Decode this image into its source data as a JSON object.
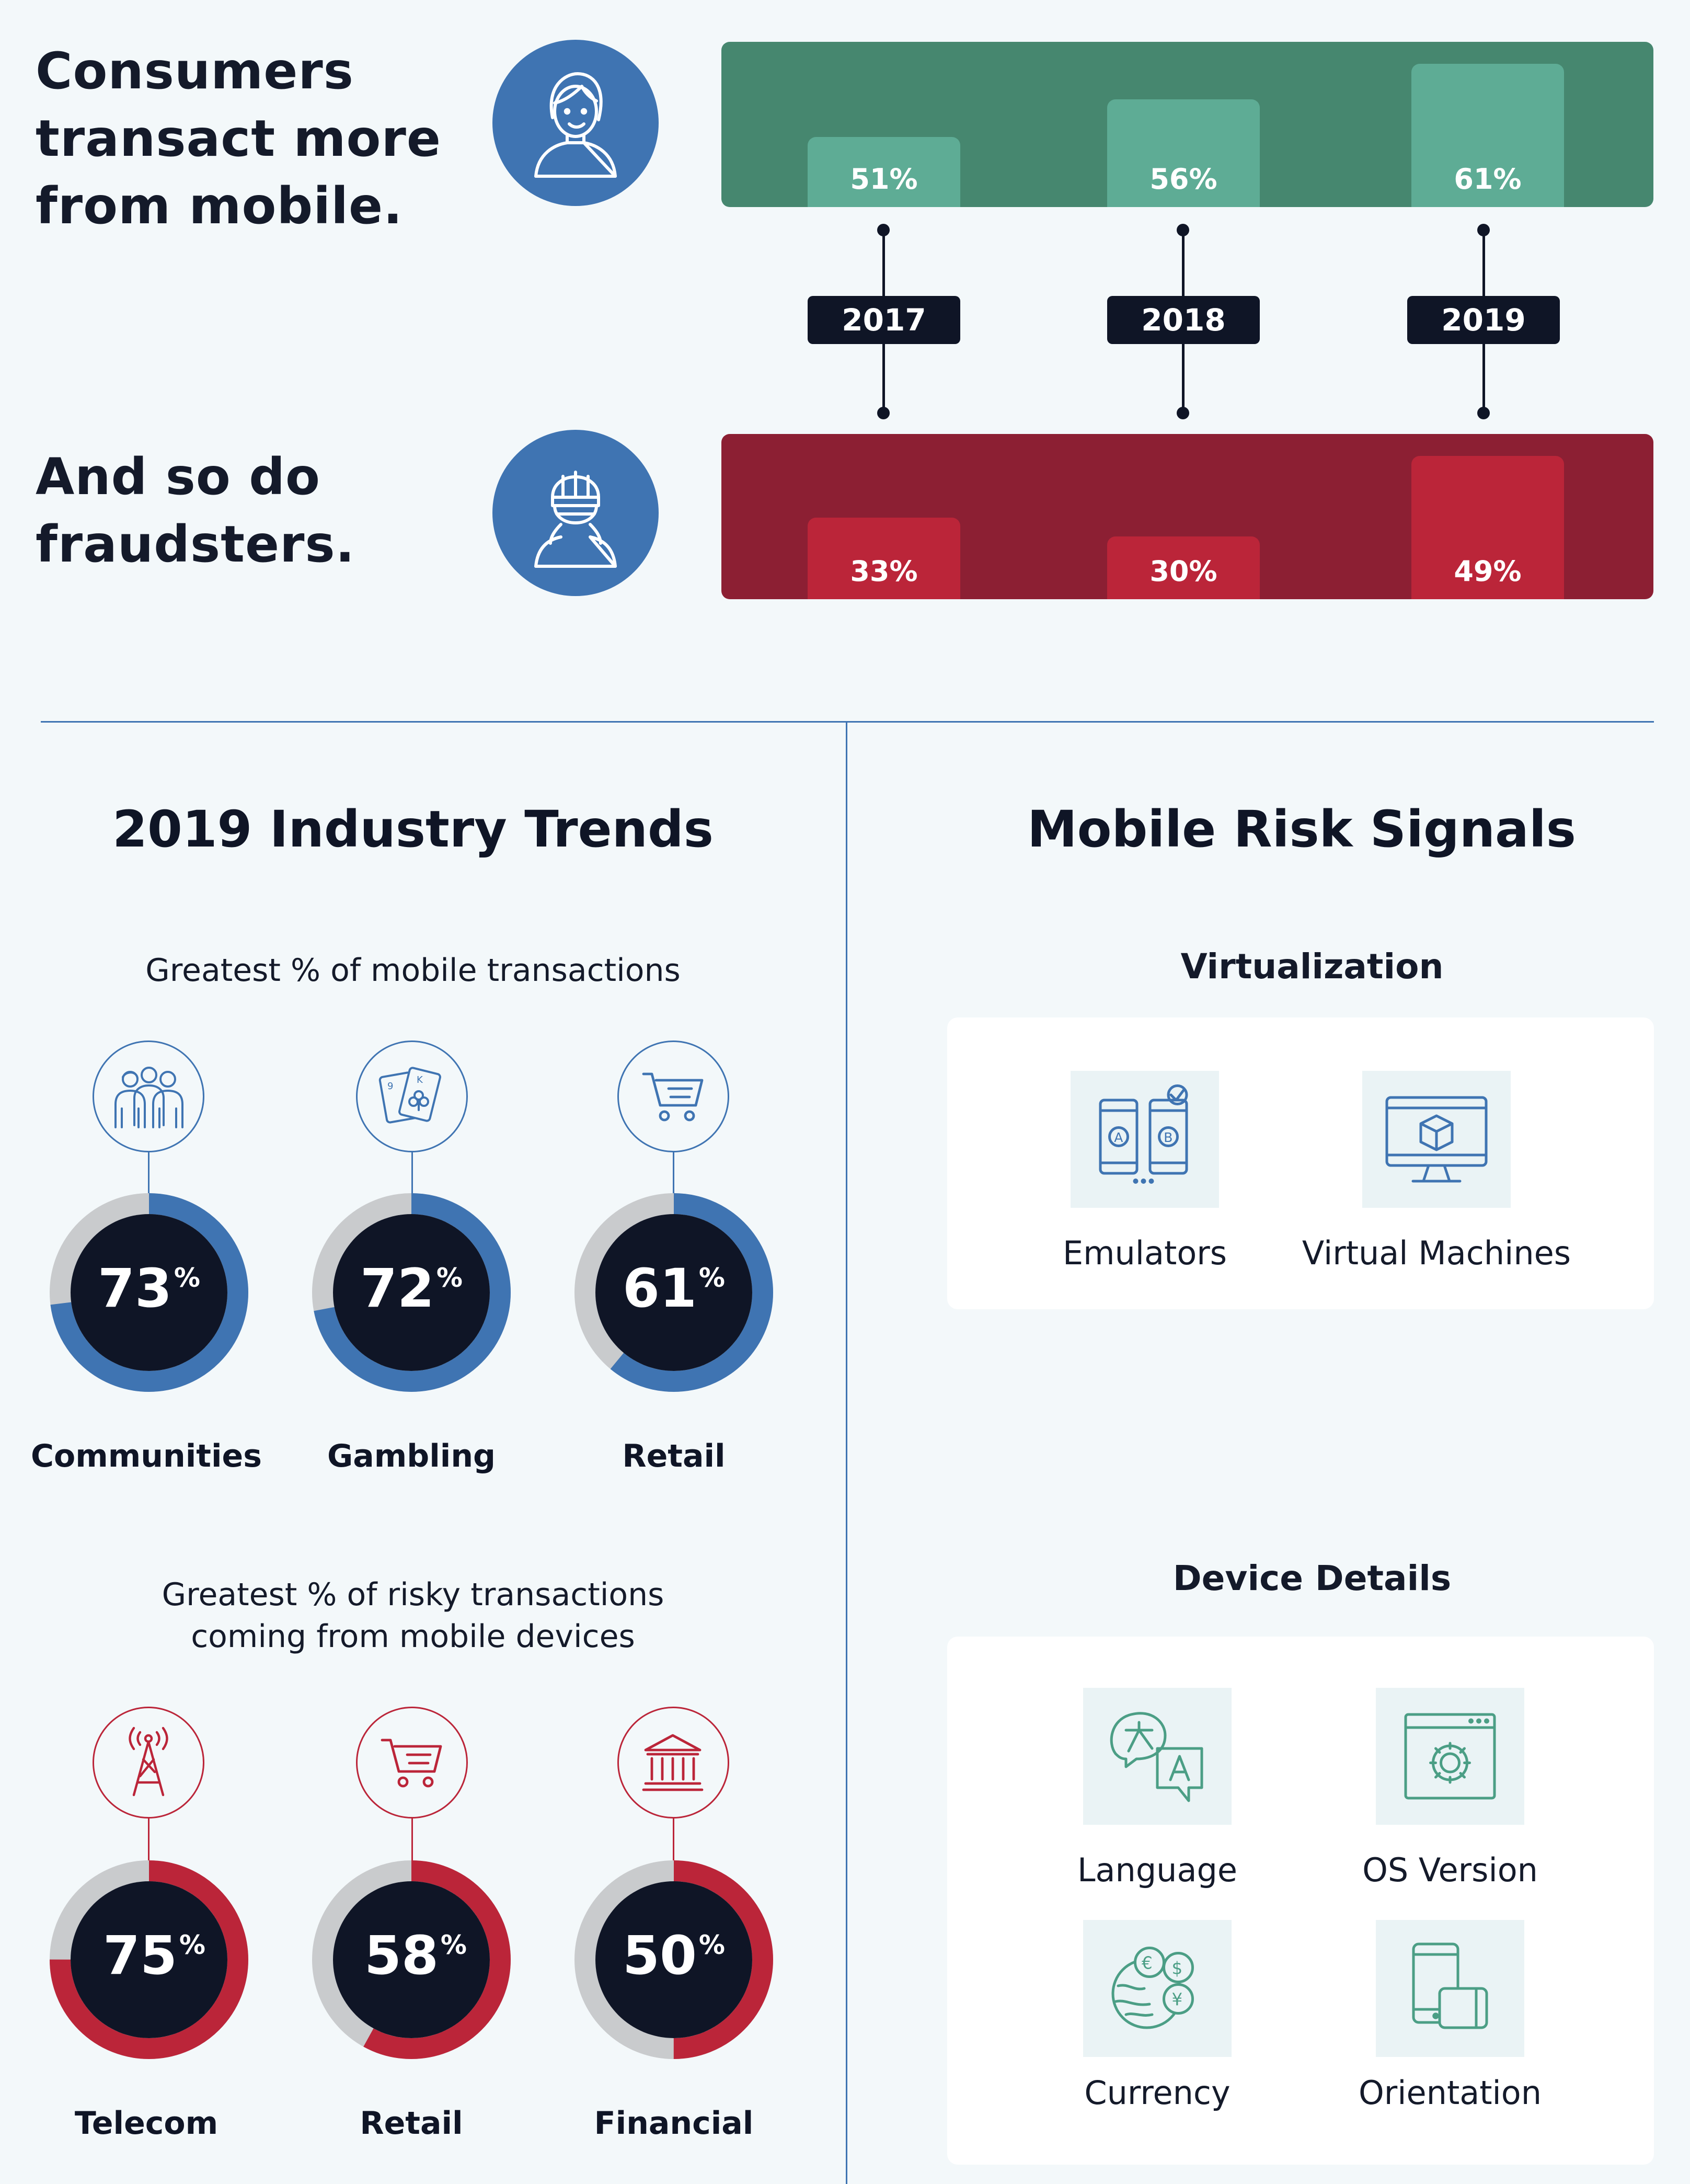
{
  "top": {
    "consumers_lines": [
      "Consumers",
      "transact more",
      "from mobile."
    ],
    "fraud_lines": [
      "And so do",
      "fraudsters."
    ],
    "years": [
      "2017",
      "2018",
      "2019"
    ],
    "consumer_values": [
      "51%",
      "56%",
      "61%"
    ],
    "fraud_values": [
      "33%",
      "30%",
      "49%"
    ],
    "consumer_pct": [
      51,
      56,
      61
    ],
    "fraud_pct": [
      33,
      30,
      49
    ],
    "colors": {
      "green_band": "#46876f",
      "green_bar": "#5eac95",
      "red_band": "#8c1f33",
      "red_bar": "#bb2539",
      "circle": "#3f74b2"
    }
  },
  "industry": {
    "title": "2019 Industry Trends",
    "mobile_subtitle": "Greatest % of mobile transactions",
    "mobile_items": [
      {
        "value": "73",
        "pct": 73,
        "label": "Communities",
        "icon": "community-icon"
      },
      {
        "value": "72",
        "pct": 72,
        "label": "Gambling",
        "icon": "playing-cards-icon"
      },
      {
        "value": "61",
        "pct": 61,
        "label": "Retail",
        "icon": "shopping-cart-icon"
      }
    ],
    "risky_subtitle_lines": [
      "Greatest % of risky transactions",
      "coming from mobile devices"
    ],
    "risky_items": [
      {
        "value": "75",
        "pct": 75,
        "label": "Telecom",
        "icon": "cell-tower-icon"
      },
      {
        "value": "58",
        "pct": 58,
        "label": "Retail",
        "icon": "shopping-cart-icon"
      },
      {
        "value": "50",
        "pct": 50,
        "label": "Financial",
        "icon": "bank-icon"
      }
    ],
    "percent_sign": "%"
  },
  "signals": {
    "title": "Mobile Risk Signals",
    "virtualization": {
      "heading": "Virtualization",
      "items": [
        {
          "label": "Emulators",
          "icon": "emulator-phones-icon"
        },
        {
          "label": "Virtual Machines",
          "icon": "virtual-machine-icon"
        }
      ]
    },
    "device": {
      "heading": "Device Details",
      "items": [
        {
          "label": "Language",
          "icon": "language-icon"
        },
        {
          "label": "OS Version",
          "icon": "os-version-icon"
        },
        {
          "label": "Currency",
          "icon": "currency-icon"
        },
        {
          "label": "Orientation",
          "icon": "orientation-icon"
        }
      ]
    }
  }
}
